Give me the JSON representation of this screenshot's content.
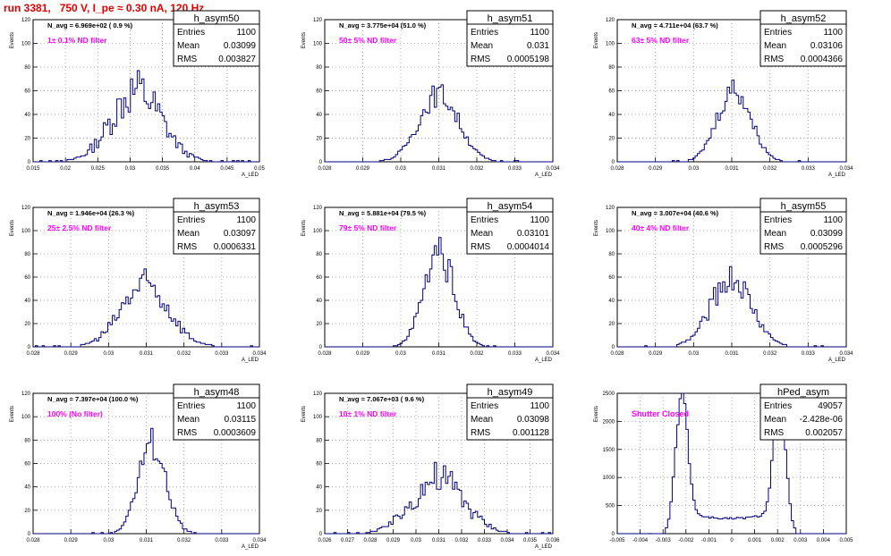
{
  "page": {
    "title": "run 3381,   750 V, I_pe ≈ 0.30 nA, 120 Hz"
  },
  "style": {
    "histogram_color": "#000080",
    "filter_label_color": "#ff00ff",
    "title_color": "#e00000",
    "grid": "dotted"
  },
  "chart_data": [
    {
      "type": "histogram",
      "name": "h_asym50",
      "stats": {
        "Entries": "1100",
        "Mean": "0.03099",
        "RMS": "0.003827"
      },
      "navg": "N_avg = 6.969e+02 ( 0.9 %)",
      "filter": "1± 0.1% ND filter",
      "ylabel": "Events",
      "xlabel": "A_LED",
      "xlim": [
        0.015,
        0.05
      ],
      "xticks": [
        "0.015",
        "0.02",
        "0.025",
        "0.03",
        "0.035",
        "0.04",
        "0.045",
        "0.05"
      ],
      "ylim": [
        0,
        120
      ],
      "yticks": [
        "0",
        "20",
        "40",
        "60",
        "80",
        "100",
        "120"
      ],
      "mean": 0.03099,
      "rms": 0.003827,
      "peak": 60,
      "bins": 100,
      "noise": 0.35,
      "shape": "gauss"
    },
    {
      "type": "histogram",
      "name": "h_asym51",
      "stats": {
        "Entries": "1100",
        "Mean": "0.031",
        "RMS": "0.0005198"
      },
      "navg": "N_avg = 3.775e+04 (51.0 %)",
      "filter": "50± 5% ND filter",
      "ylabel": "Events",
      "xlabel": "A_LED",
      "xlim": [
        0.028,
        0.034
      ],
      "xticks": [
        "0.028",
        "0.029",
        "0.03",
        "0.031",
        "0.032",
        "0.033",
        "0.034"
      ],
      "ylim": [
        0,
        120
      ],
      "yticks": [
        "0",
        "20",
        "40",
        "60",
        "80",
        "100",
        "120"
      ],
      "mean": 0.031,
      "rms": 0.0005198,
      "peak": 57,
      "bins": 100,
      "noise": 0.18,
      "shape": "gauss"
    },
    {
      "type": "histogram",
      "name": "h_asym52",
      "stats": {
        "Entries": "1100",
        "Mean": "0.03106",
        "RMS": "0.0004366"
      },
      "navg": "N_avg = 4.711e+04 (63.7 %)",
      "filter": "63± 5% ND filter",
      "ylabel": "Events",
      "xlabel": "A_LED",
      "xlim": [
        0.028,
        0.034
      ],
      "xticks": [
        "0.028",
        "0.029",
        "0.03",
        "0.031",
        "0.032",
        "0.033",
        "0.034"
      ],
      "ylim": [
        0,
        120
      ],
      "yticks": [
        "0",
        "20",
        "40",
        "60",
        "80",
        "100",
        "120"
      ],
      "mean": 0.03106,
      "rms": 0.0004366,
      "peak": 62,
      "bins": 100,
      "noise": 0.18,
      "shape": "gauss"
    },
    {
      "type": "histogram",
      "name": "h_asym53",
      "stats": {
        "Entries": "1100",
        "Mean": "0.03097",
        "RMS": "0.0006331"
      },
      "navg": "N_avg = 1.946e+04 (26.3 %)",
      "filter": "25± 2.5% ND filter",
      "ylabel": "Events",
      "xlabel": "A_LED",
      "xlim": [
        0.028,
        0.034
      ],
      "xticks": [
        "0.028",
        "0.029",
        "0.03",
        "0.031",
        "0.032",
        "0.033",
        "0.034"
      ],
      "ylim": [
        0,
        120
      ],
      "yticks": [
        "0",
        "20",
        "40",
        "60",
        "80",
        "100",
        "120"
      ],
      "mean": 0.03097,
      "rms": 0.0006331,
      "peak": 53,
      "bins": 100,
      "noise": 0.28,
      "shape": "gauss"
    },
    {
      "type": "histogram",
      "name": "h_asym54",
      "stats": {
        "Entries": "1100",
        "Mean": "0.03101",
        "RMS": "0.0004014"
      },
      "navg": "N_avg = 5.881e+04 (79.5 %)",
      "filter": "79± 5% ND filter",
      "ylabel": "Events",
      "xlabel": "A_LED",
      "xlim": [
        0.028,
        0.034
      ],
      "xticks": [
        "0.028",
        "0.029",
        "0.03",
        "0.031",
        "0.032",
        "0.033",
        "0.034"
      ],
      "ylim": [
        0,
        120
      ],
      "yticks": [
        "0",
        "20",
        "40",
        "60",
        "80",
        "100",
        "120"
      ],
      "mean": 0.03101,
      "rms": 0.0004014,
      "peak": 79,
      "bins": 100,
      "noise": 0.2,
      "shape": "gauss"
    },
    {
      "type": "histogram",
      "name": "h_asym55",
      "stats": {
        "Entries": "1100",
        "Mean": "0.03099",
        "RMS": "0.0005296"
      },
      "navg": "N_avg = 3.007e+04 (40.6 %)",
      "filter": "40± 4% ND filter",
      "ylabel": "Events",
      "xlabel": "A_LED",
      "xlim": [
        0.028,
        0.034
      ],
      "xticks": [
        "0.028",
        "0.029",
        "0.03",
        "0.031",
        "0.032",
        "0.033",
        "0.034"
      ],
      "ylim": [
        0,
        120
      ],
      "yticks": [
        "0",
        "20",
        "40",
        "60",
        "80",
        "100",
        "120"
      ],
      "mean": 0.03099,
      "rms": 0.0005296,
      "peak": 59,
      "bins": 100,
      "noise": 0.22,
      "shape": "gauss"
    },
    {
      "type": "histogram",
      "name": "h_asym48",
      "stats": {
        "Entries": "1100",
        "Mean": "0.03115",
        "RMS": "0.0003609"
      },
      "navg": "N_avg = 7.397e+04 (100.0 %)",
      "filter": "100% (No filter)",
      "ylabel": "Events",
      "xlabel": "A_LED",
      "xlim": [
        0.028,
        0.034
      ],
      "xticks": [
        "0.028",
        "0.029",
        "0.03",
        "0.031",
        "0.032",
        "0.033",
        "0.034"
      ],
      "ylim": [
        0,
        120
      ],
      "yticks": [
        "0",
        "20",
        "40",
        "60",
        "80",
        "100",
        "120"
      ],
      "mean": 0.03115,
      "rms": 0.0003609,
      "peak": 77,
      "bins": 100,
      "noise": 0.18,
      "shape": "gauss"
    },
    {
      "type": "histogram",
      "name": "h_asym49",
      "stats": {
        "Entries": "1100",
        "Mean": "0.03098",
        "RMS": "0.001128"
      },
      "navg": "N_avg = 7.067e+03 ( 9.6 %)",
      "filter": "10± 1% ND filter",
      "ylabel": "Events",
      "xlabel": "A_LED",
      "xlim": [
        0.026,
        0.036
      ],
      "xticks": [
        "0.026",
        "0.027",
        "0.028",
        "0.029",
        "0.03",
        "0.031",
        "0.032",
        "0.033",
        "0.034",
        "0.035",
        "0.036"
      ],
      "ylim": [
        0,
        120
      ],
      "yticks": [
        "0",
        "20",
        "40",
        "60",
        "80",
        "100",
        "120"
      ],
      "mean": 0.03098,
      "rms": 0.001128,
      "peak": 47,
      "bins": 100,
      "noise": 0.35,
      "shape": "gauss"
    },
    {
      "type": "histogram",
      "name": "hPed_asym",
      "stats": {
        "Entries": "49057",
        "Mean": "-2.428e-06",
        "RMS": "0.002057"
      },
      "navg": "",
      "filter": "Shutter Closed",
      "ylabel": "Events",
      "xlabel": "",
      "xlim": [
        -0.005,
        0.005
      ],
      "xticks": [
        "-0.005",
        "-0.004",
        "-0.003",
        "-0.002",
        "-0.001",
        "0",
        "0.001",
        "0.002",
        "0.003",
        "0.004",
        "0.005"
      ],
      "ylim": [
        0,
        2500
      ],
      "yticks": [
        "0",
        "500",
        "1000",
        "1500",
        "2000",
        "2500"
      ],
      "mean": 0,
      "rms": 0.00026,
      "peak": 2400,
      "bins": 100,
      "noise": 0.07,
      "shape": "double",
      "peaks": [
        -0.0022,
        0.0021
      ],
      "valley": 300
    }
  ]
}
